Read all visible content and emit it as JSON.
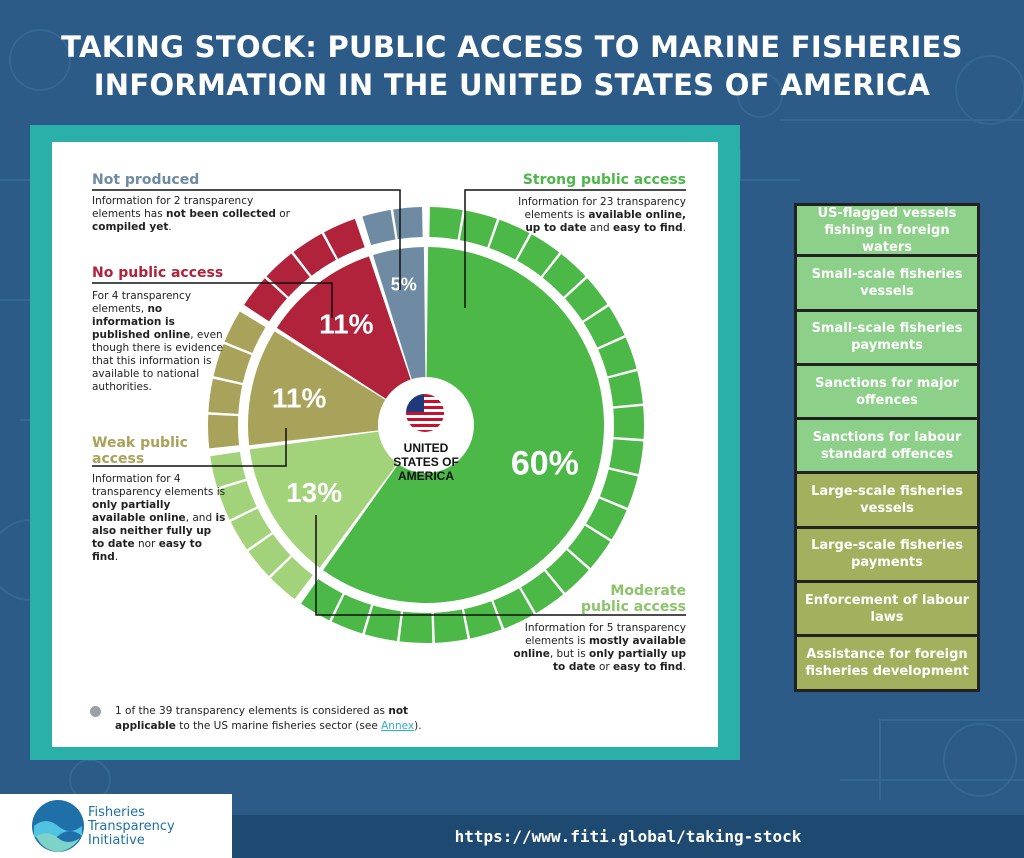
{
  "title_line1": "TAKING STOCK: PUBLIC ACCESS TO MARINE FISHERIES",
  "title_line2": "INFORMATION IN THE UNITED STATES OF AMERICA",
  "colors": {
    "strong": "#4cb848",
    "moderate": "#a2d27a",
    "weak": "#a8a25a",
    "none": "#b0233a",
    "not_produced": "#6e8ba3",
    "box_green": "#8dd08a",
    "box_olive": "#a3b15f"
  },
  "chart_data": {
    "type": "pie",
    "center_label": [
      "UNITED",
      "STATES OF",
      "AMERICA"
    ],
    "slices": [
      {
        "name": "Strong public access",
        "value": 60,
        "label": "60%",
        "elements": 23
      },
      {
        "name": "Moderate public access",
        "value": 13,
        "label": "13%",
        "elements": 5
      },
      {
        "name": "Weak public access",
        "value": 11,
        "label": "11%",
        "elements": 4
      },
      {
        "name": "No public access",
        "value": 11,
        "label": "11%",
        "elements": 4
      },
      {
        "name": "Not produced",
        "value": 5,
        "label": "5%",
        "elements": 2
      }
    ]
  },
  "categories": {
    "not_produced": {
      "title": "Not produced",
      "desc_pre": "Information for 2 transparency elements has ",
      "desc_bold1": "not been collected",
      "desc_mid": " or ",
      "desc_bold2": "compiled yet",
      "desc_post": "."
    },
    "none": {
      "title": "No public access",
      "desc_pre": "For 4 transparency elements, ",
      "desc_bold1": "no information is published online",
      "desc_post": ", even though there is evidence that this information is available to national authorities."
    },
    "weak": {
      "title_line1": "Weak public",
      "title_line2": "access",
      "desc_pre": "Information for 4 transparency elements is ",
      "desc_bold1": "only partially available online",
      "desc_mid": ", and ",
      "desc_bold2": "is also neither fully up to date",
      "desc_mid2": " nor ",
      "desc_bold3": "easy to find",
      "desc_post": "."
    },
    "strong": {
      "title": "Strong public access",
      "desc_pre": "Information for 23 transparency elements is ",
      "desc_bold1": "available online,",
      "desc_mid": " ",
      "desc_bold2": "up to date",
      "desc_mid2": " and ",
      "desc_bold3": "easy to find",
      "desc_post": "."
    },
    "moderate": {
      "title_line1": "Moderate",
      "title_line2": "public access",
      "desc_pre": "Information for 5 transparency elements is ",
      "desc_bold1": "mostly available online",
      "desc_mid": ", but is ",
      "desc_bold2": "only partially up to date",
      "desc_mid2": " or ",
      "desc_bold3": "easy to find",
      "desc_post": "."
    }
  },
  "note": {
    "pre": "1 of the 39 transparency elements is considered as ",
    "bold": "not applicable",
    "mid": " to the US marine fisheries sector (see ",
    "link": "Annex",
    "post": ")."
  },
  "legend_boxes": [
    {
      "label": "US-flagged vessels fishing in foreign waters",
      "tone": "green"
    },
    {
      "label": "Small-scale fisheries vessels",
      "tone": "green"
    },
    {
      "label": "Small-scale fisheries payments",
      "tone": "green"
    },
    {
      "label": "Sanctions for major offences",
      "tone": "green"
    },
    {
      "label": "Sanctions for labour standard offences",
      "tone": "green"
    },
    {
      "label": "Large-scale fisheries vessels",
      "tone": "olive"
    },
    {
      "label": "Large-scale fisheries payments",
      "tone": "olive"
    },
    {
      "label": "Enforcement of labour laws",
      "tone": "olive"
    },
    {
      "label": "Assistance for foreign fisheries development",
      "tone": "olive"
    }
  ],
  "footer": {
    "url": "https://www.fiti.global/taking-stock",
    "logo_line1": "Fisheries",
    "logo_line2": "Transparency",
    "logo_line3": "Initiative"
  }
}
